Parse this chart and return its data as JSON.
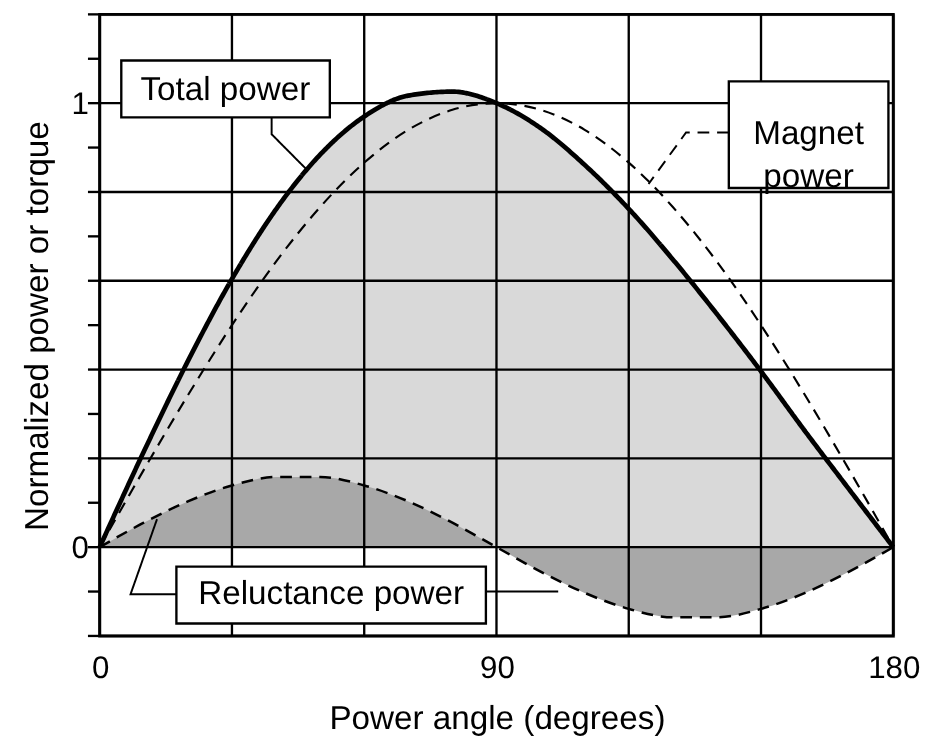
{
  "chart_data": {
    "type": "area",
    "xlabel": "Power angle (degrees)",
    "ylabel": "Normalized power or torque",
    "x": [
      0,
      10,
      20,
      30,
      40,
      50,
      60,
      70,
      80,
      90,
      100,
      110,
      120,
      130,
      140,
      150,
      160,
      170,
      180
    ],
    "series": [
      {
        "name": "Total power",
        "type": "area",
        "color": "#d9d9d9",
        "line_style": "solid",
        "values": [
          0,
          0.215,
          0.419,
          0.604,
          0.761,
          0.884,
          0.97,
          1.017,
          1.026,
          1.0,
          0.944,
          0.861,
          0.762,
          0.648,
          0.525,
          0.396,
          0.261,
          0.13,
          0
        ]
      },
      {
        "name": "Reluctance power",
        "type": "area",
        "color": "#a8a8a8",
        "line_style": "dashed",
        "values": [
          0,
          0.055,
          0.103,
          0.139,
          0.158,
          0.158,
          0.139,
          0.103,
          0.055,
          0,
          -0.055,
          -0.103,
          -0.139,
          -0.158,
          -0.158,
          -0.139,
          -0.103,
          -0.055,
          0
        ]
      },
      {
        "name": "Magnet power",
        "type": "line",
        "color": "#000000",
        "line_style": "dashed",
        "values": [
          0,
          0.174,
          0.342,
          0.5,
          0.643,
          0.766,
          0.866,
          0.94,
          0.985,
          1.0,
          0.985,
          0.94,
          0.866,
          0.766,
          0.643,
          0.5,
          0.342,
          0.174,
          0
        ]
      }
    ],
    "xlim": [
      0,
      180
    ],
    "xticks": [
      0,
      {
        "value": 30,
        "label": null
      },
      {
        "value": 60,
        "label": null
      },
      90,
      {
        "value": 120,
        "label": null
      },
      {
        "value": 150,
        "label": null
      },
      180
    ],
    "ylim": [
      -0.2,
      1.2
    ],
    "yticks": [
      {
        "value": -0.2,
        "label": null
      },
      {
        "value": -0.1,
        "label": null
      },
      0,
      {
        "value": 0.1,
        "label": null
      },
      {
        "value": 0.2,
        "label": null
      },
      {
        "value": 0.3,
        "label": null
      },
      {
        "value": 0.4,
        "label": null
      },
      {
        "value": 0.5,
        "label": null
      },
      {
        "value": 0.6,
        "label": null
      },
      {
        "value": 0.7,
        "label": null
      },
      {
        "value": 0.8,
        "label": null
      },
      {
        "value": 0.9,
        "label": null
      },
      1,
      {
        "value": 1.1,
        "label": null
      },
      {
        "value": 1.2,
        "label": null
      }
    ],
    "grid": true,
    "marker": "none"
  }
}
